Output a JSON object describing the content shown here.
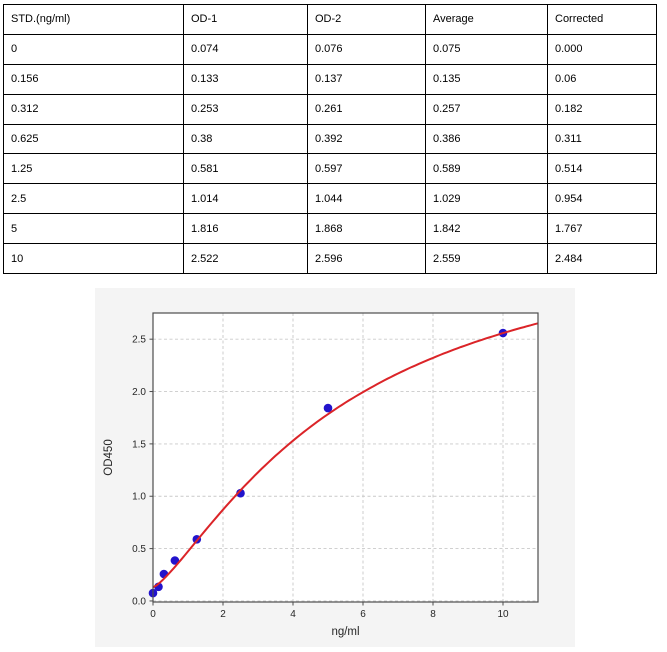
{
  "table": {
    "columns": [
      "STD.(ng/ml)",
      "OD-1",
      "OD-2",
      "Average",
      "Corrected"
    ],
    "rows": [
      [
        "0",
        "0.074",
        "0.076",
        "0.075",
        "0.000"
      ],
      [
        "0.156",
        "0.133",
        "0.137",
        "0.135",
        "0.06"
      ],
      [
        "0.312",
        "0.253",
        "0.261",
        "0.257",
        "0.182"
      ],
      [
        "0.625",
        "0.38",
        "0.392",
        "0.386",
        "0.311"
      ],
      [
        "1.25",
        "0.581",
        "0.597",
        "0.589",
        "0.514"
      ],
      [
        "2.5",
        "1.014",
        "1.044",
        "1.029",
        "0.954"
      ],
      [
        "5",
        "1.816",
        "1.868",
        "1.842",
        "1.767"
      ],
      [
        "10",
        "2.522",
        "2.596",
        "2.559",
        "2.484"
      ]
    ]
  },
  "chart_data": {
    "type": "scatter",
    "title": "",
    "xlabel": "ng/ml",
    "ylabel": "OD450",
    "xlim": [
      0,
      11
    ],
    "ylim": [
      -0.01,
      2.75
    ],
    "x_ticks": [
      0,
      2,
      4,
      6,
      8,
      10
    ],
    "y_ticks": [
      "0.0",
      "0.5",
      "1.0",
      "1.5",
      "2.0",
      "2.5"
    ],
    "grid": true,
    "legend": "none",
    "series": [
      {
        "name": "standard-points",
        "type": "scatter",
        "color": "#2213cc",
        "x": [
          0,
          0.156,
          0.312,
          0.625,
          1.25,
          2.5,
          5,
          10
        ],
        "y": [
          0.075,
          0.135,
          0.257,
          0.386,
          0.589,
          1.029,
          1.842,
          2.559
        ]
      },
      {
        "name": "fit-curve",
        "type": "line",
        "color": "#db2428",
        "fit": {
          "model": "4PL",
          "a": 0.13,
          "b": 1.3,
          "c": 5.6,
          "d": 3.7
        },
        "x_range": [
          0,
          11
        ]
      }
    ],
    "colors": {
      "panel_bg": "#f4f4f4",
      "plot_bg": "#ffffff",
      "grid": "#c9c9c9",
      "axis": "#4d4d4d",
      "text": "#262626"
    }
  }
}
